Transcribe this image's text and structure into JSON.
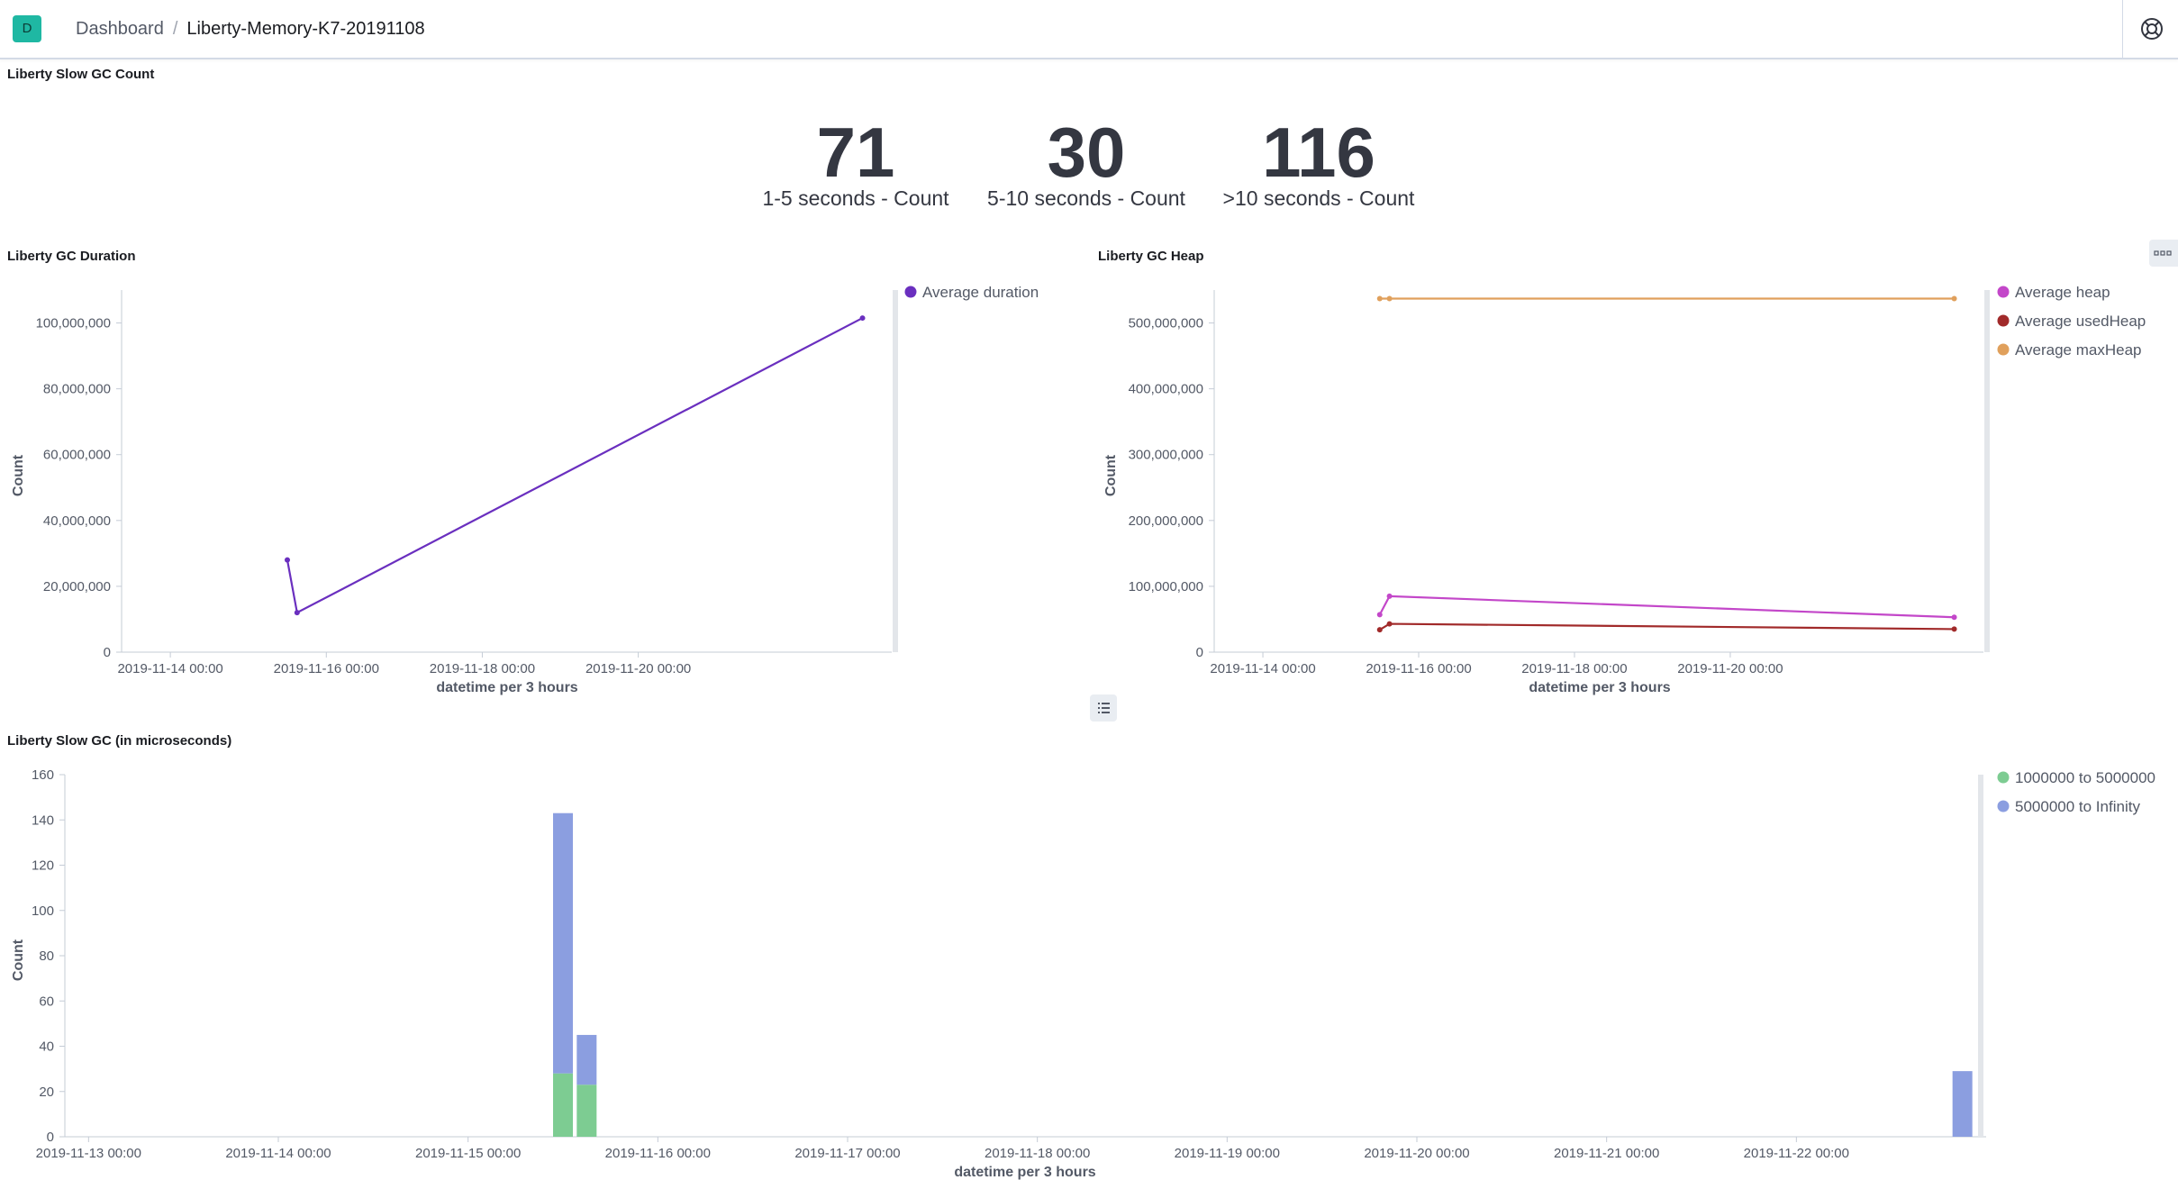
{
  "header": {
    "app_badge": "D",
    "breadcrumb_root": "Dashboard",
    "breadcrumb_separator": "/",
    "breadcrumb_current": "Liberty-Memory-K7-20191108"
  },
  "panels": {
    "slow_gc_count": {
      "title": "Liberty Slow GC Count",
      "metrics": [
        {
          "value": "71",
          "label": "1-5 seconds - Count"
        },
        {
          "value": "30",
          "label": "5-10 seconds - Count"
        },
        {
          "value": "116",
          "label": ">10 seconds - Count"
        }
      ]
    }
  },
  "chart_data": [
    {
      "type": "line",
      "title": "Liberty GC Duration",
      "xlabel": "datetime per 3 hours",
      "ylabel": "Count",
      "ylim": [
        0,
        110000000
      ],
      "yticks": [
        0,
        20000000,
        40000000,
        60000000,
        80000000,
        100000000
      ],
      "ytick_labels": [
        "0",
        "20,000,000",
        "40,000,000",
        "60,000,000",
        "80,000,000",
        "100,000,000"
      ],
      "xlim": [
        "2019-11-13 09:00",
        "2019-11-23 06:00"
      ],
      "xticks": [
        "2019-11-14 00:00",
        "2019-11-16 00:00",
        "2019-11-18 00:00",
        "2019-11-20 00:00"
      ],
      "legend_position": "top-right",
      "series": [
        {
          "name": "Average duration",
          "color": "#6a2fbf",
          "points": [
            [
              "2019-11-15 12:00",
              28000000
            ],
            [
              "2019-11-15 15:00",
              12000000
            ],
            [
              "2019-11-22 21:00",
              101500000
            ]
          ]
        }
      ]
    },
    {
      "type": "line",
      "title": "Liberty GC Heap",
      "xlabel": "datetime per 3 hours",
      "ylabel": "Count",
      "ylim": [
        0,
        550000000
      ],
      "yticks": [
        0,
        100000000,
        200000000,
        300000000,
        400000000,
        500000000
      ],
      "ytick_labels": [
        "0",
        "100,000,000",
        "200,000,000",
        "300,000,000",
        "400,000,000",
        "500,000,000"
      ],
      "xlim": [
        "2019-11-13 09:00",
        "2019-11-23 06:00"
      ],
      "xticks": [
        "2019-11-14 00:00",
        "2019-11-16 00:00",
        "2019-11-18 00:00",
        "2019-11-20 00:00"
      ],
      "legend_position": "top-right",
      "series": [
        {
          "name": "Average heap",
          "color": "#c347c9",
          "points": [
            [
              "2019-11-15 12:00",
              57000000
            ],
            [
              "2019-11-15 15:00",
              85000000
            ],
            [
              "2019-11-22 21:00",
              53000000
            ]
          ]
        },
        {
          "name": "Average usedHeap",
          "color": "#a12a2a",
          "points": [
            [
              "2019-11-15 12:00",
              34000000
            ],
            [
              "2019-11-15 15:00",
              43000000
            ],
            [
              "2019-11-22 21:00",
              35000000
            ]
          ]
        },
        {
          "name": "Average maxHeap",
          "color": "#e0a05c",
          "points": [
            [
              "2019-11-15 12:00",
              537000000
            ],
            [
              "2019-11-15 15:00",
              537000000
            ],
            [
              "2019-11-22 21:00",
              537000000
            ]
          ]
        }
      ]
    },
    {
      "type": "bar",
      "stacked": true,
      "title": "Liberty Slow GC (in microseconds)",
      "xlabel": "datetime per 3 hours",
      "ylabel": "Count",
      "ylim": [
        0,
        160
      ],
      "yticks": [
        0,
        20,
        40,
        60,
        80,
        100,
        120,
        140,
        160
      ],
      "xlim": [
        "2019-11-12 21:00",
        "2019-11-23 00:00"
      ],
      "xticks": [
        "2019-11-13 00:00",
        "2019-11-14 00:00",
        "2019-11-15 00:00",
        "2019-11-16 00:00",
        "2019-11-17 00:00",
        "2019-11-18 00:00",
        "2019-11-19 00:00",
        "2019-11-20 00:00",
        "2019-11-21 00:00",
        "2019-11-22 00:00"
      ],
      "legend_position": "top-right",
      "x": [
        "2019-11-15 12:00",
        "2019-11-15 15:00",
        "2019-11-22 21:00"
      ],
      "series": [
        {
          "name": "1000000 to 5000000",
          "color": "#7dcc92",
          "values": [
            28,
            23,
            0
          ]
        },
        {
          "name": "5000000 to Infinity",
          "color": "#8b9ee0",
          "values": [
            115,
            22,
            29
          ]
        }
      ]
    }
  ]
}
